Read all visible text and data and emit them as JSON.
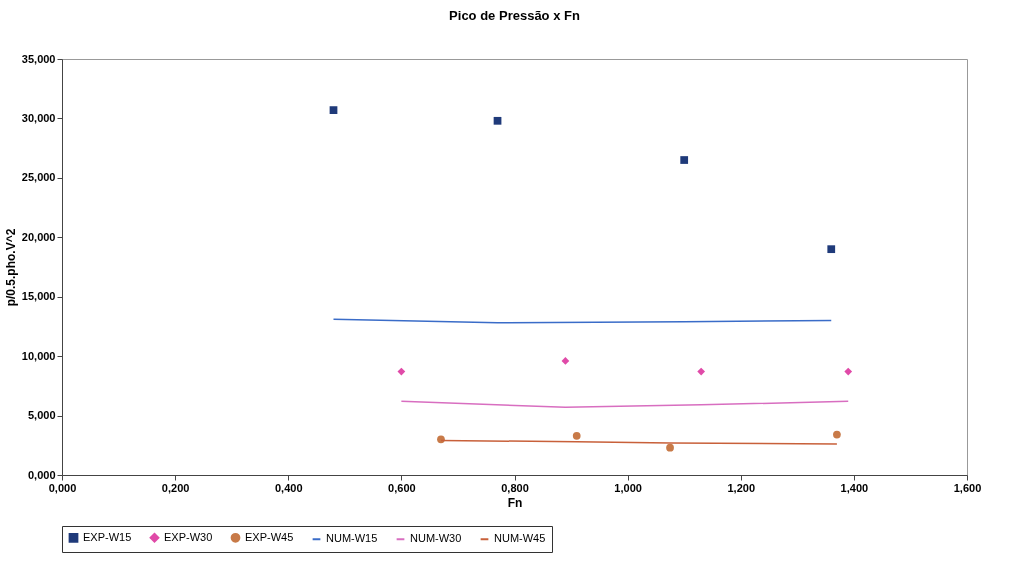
{
  "chart_data": {
    "type": "scatter",
    "title": "Pico de Pressão x Fn",
    "xlabel": "Fn",
    "ylabel": "p/0.5.pho.V^2",
    "xlim": [
      0,
      1.6
    ],
    "xticks": [
      {
        "value": 0,
        "label": "0,000"
      },
      {
        "value": 0.2,
        "label": "0,200"
      },
      {
        "value": 0.4,
        "label": "0,400"
      },
      {
        "value": 0.6,
        "label": "0,600"
      },
      {
        "value": 0.8,
        "label": "0,800"
      },
      {
        "value": 1.0,
        "label": "1,000"
      },
      {
        "value": 1.2,
        "label": "1,200"
      },
      {
        "value": 1.4,
        "label": "1,400"
      },
      {
        "value": 1.6,
        "label": "1,600"
      }
    ],
    "ylim": [
      0,
      35
    ],
    "yticks": [
      {
        "value": 0,
        "label": "0,000"
      },
      {
        "value": 5,
        "label": "5,000"
      },
      {
        "value": 10,
        "label": "10,000"
      },
      {
        "value": 15,
        "label": "15,000"
      },
      {
        "value": 20,
        "label": "20,000"
      },
      {
        "value": 25,
        "label": "25,000"
      },
      {
        "value": 30,
        "label": "30,000"
      },
      {
        "value": 35,
        "label": "35,000"
      }
    ],
    "grid": false,
    "legend": "bottom",
    "series": [
      {
        "name": "EXP-W15",
        "marker": "square",
        "color": "#1f3a7a",
        "x": [
          0.48,
          0.77,
          1.1,
          1.36
        ],
        "values": [
          30.7,
          29.8,
          26.5,
          19.0
        ]
      },
      {
        "name": "EXP-W30",
        "marker": "diamond",
        "color": "#e04aa8",
        "x": [
          0.6,
          0.89,
          1.13,
          1.39
        ],
        "values": [
          8.7,
          9.6,
          8.7,
          8.7
        ]
      },
      {
        "name": "EXP-W45",
        "marker": "circle",
        "color": "#c87a48",
        "x": [
          0.67,
          0.91,
          1.075,
          1.37
        ],
        "values": [
          3.0,
          3.3,
          2.3,
          3.4
        ]
      },
      {
        "name": "NUM-W15",
        "type": "line",
        "line_style": "solid",
        "color": "#3a6cc8",
        "x": [
          0.48,
          0.77,
          1.1,
          1.36
        ],
        "values": [
          13.1,
          12.8,
          12.9,
          13.0
        ]
      },
      {
        "name": "NUM-W30",
        "type": "line",
        "line_style": "solid",
        "color": "#d86ec0",
        "x": [
          0.6,
          0.89,
          1.13,
          1.39
        ],
        "values": [
          6.2,
          5.7,
          5.9,
          6.2
        ]
      },
      {
        "name": "NUM-W45",
        "type": "line",
        "line_style": "solid",
        "color": "#c8603a",
        "x": [
          0.67,
          0.91,
          1.075,
          1.37
        ],
        "values": [
          2.9,
          2.8,
          2.7,
          2.6
        ]
      }
    ]
  }
}
